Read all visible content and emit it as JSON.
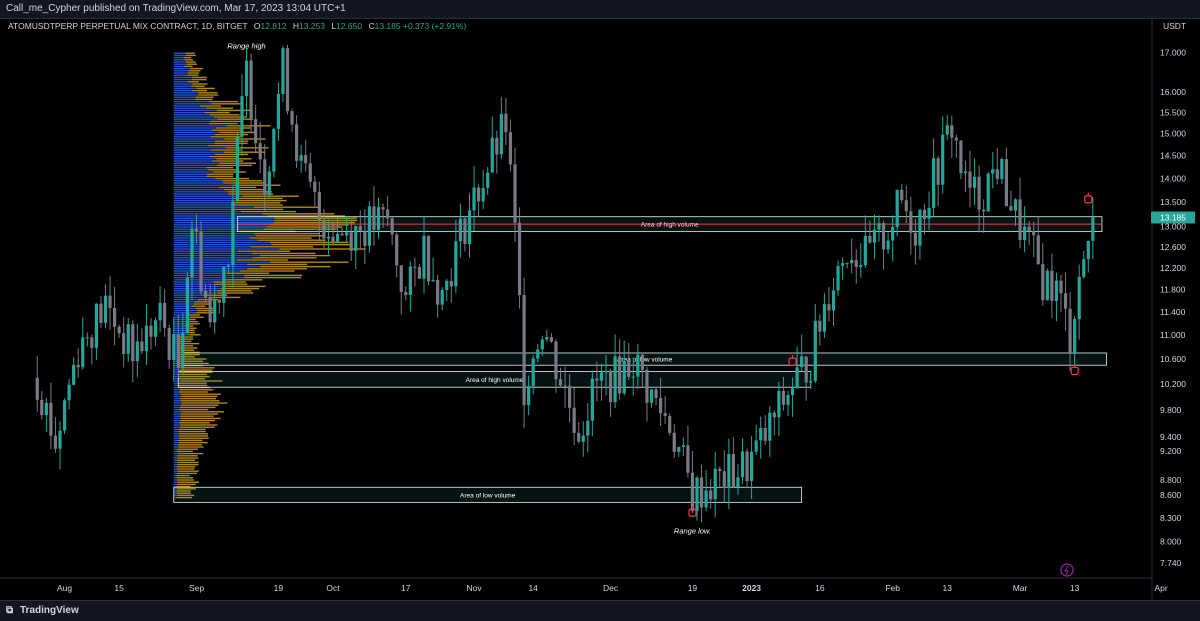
{
  "header": {
    "published": "Call_me_Cypher published on TradingView.com, Mar 17, 2023 13:04 UTC+1",
    "symbol": "ATOMUSDTPERP PERPETUAL MIX CONTRACT, 1D, BITGET",
    "ohlc": {
      "o_label": "O",
      "o": "12.812",
      "h_label": "H",
      "h": "13.253",
      "l_label": "L",
      "l": "12.650",
      "c_label": "C",
      "c": "13.185",
      "change": "+0.373 (+2.91%)"
    },
    "currency": "USDT"
  },
  "footer": {
    "brand": "TradingView"
  },
  "chart_data": {
    "type": "candlestick",
    "y_scale": "log",
    "ylim": [
      7.6,
      17.6
    ],
    "y_ticks": [
      "17.000",
      "16.000",
      "15.500",
      "15.000",
      "14.500",
      "14.000",
      "13.500",
      "13.000",
      "12.600",
      "12.200",
      "11.800",
      "11.400",
      "11.000",
      "10.600",
      "10.200",
      "9.800",
      "9.400",
      "9.200",
      "8.800",
      "8.600",
      "8.300",
      "8.000",
      "7.740"
    ],
    "x_ticks": [
      "Aug",
      "15",
      "Sep",
      "19",
      "Oct",
      "17",
      "Nov",
      "14",
      "Dec",
      "19",
      "2023",
      "16",
      "Feb",
      "13",
      "Mar",
      "13",
      "Apr"
    ],
    "last_price": "13.185",
    "price_line": 13.05,
    "anchors": [
      {
        "date": "Jul 28",
        "price": 10.3
      },
      {
        "date": "Aug 01",
        "price": 9.3
      },
      {
        "date": "Aug 06",
        "price": 10.8
      },
      {
        "date": "Aug 12",
        "price": 11.5
      },
      {
        "date": "Aug 18",
        "price": 10.7
      },
      {
        "date": "Aug 24",
        "price": 11.3
      },
      {
        "date": "Aug 28",
        "price": 10.5
      },
      {
        "date": "Aug 31",
        "price": 13.1
      },
      {
        "date": "Sep 04",
        "price": 11.2
      },
      {
        "date": "Sep 08",
        "price": 12.6
      },
      {
        "date": "Sep 12",
        "price": 16.5
      },
      {
        "date": "Sep 16",
        "price": 14.0
      },
      {
        "date": "Sep 20",
        "price": 16.6
      },
      {
        "date": "Sep 24",
        "price": 14.2
      },
      {
        "date": "Sep 28",
        "price": 13.2
      },
      {
        "date": "Oct 02",
        "price": 12.9
      },
      {
        "date": "Oct 08",
        "price": 13.0
      },
      {
        "date": "Oct 13",
        "price": 13.1
      },
      {
        "date": "Oct 17",
        "price": 11.6
      },
      {
        "date": "Oct 21",
        "price": 12.6
      },
      {
        "date": "Oct 25",
        "price": 11.7
      },
      {
        "date": "Oct 30",
        "price": 13.1
      },
      {
        "date": "Nov 03",
        "price": 14.0
      },
      {
        "date": "Nov 08",
        "price": 15.2
      },
      {
        "date": "Nov 10",
        "price": 12.8
      },
      {
        "date": "Nov 12",
        "price": 10.2
      },
      {
        "date": "Nov 16",
        "price": 11.2
      },
      {
        "date": "Nov 20",
        "price": 10.3
      },
      {
        "date": "Nov 24",
        "price": 9.5
      },
      {
        "date": "Nov 28",
        "price": 10.2
      },
      {
        "date": "Dec 02",
        "price": 10.3
      },
      {
        "date": "Dec 06",
        "price": 10.6
      },
      {
        "date": "Dec 10",
        "price": 10.0
      },
      {
        "date": "Dec 14",
        "price": 9.6
      },
      {
        "date": "Dec 19",
        "price": 8.6
      },
      {
        "date": "Dec 25",
        "price": 8.8
      },
      {
        "date": "Dec 31",
        "price": 9.0
      },
      {
        "date": "Jan 04",
        "price": 9.4
      },
      {
        "date": "Jan 07",
        "price": 9.8
      },
      {
        "date": "Jan 10",
        "price": 10.2
      },
      {
        "date": "Jan 14",
        "price": 10.6
      },
      {
        "date": "Jan 18",
        "price": 11.8
      },
      {
        "date": "Jan 22",
        "price": 12.6
      },
      {
        "date": "Jan 26",
        "price": 12.4
      },
      {
        "date": "Jan 30",
        "price": 12.8
      },
      {
        "date": "Feb 03",
        "price": 13.5
      },
      {
        "date": "Feb 06",
        "price": 13.0
      },
      {
        "date": "Feb 10",
        "price": 14.0
      },
      {
        "date": "Feb 14",
        "price": 15.2
      },
      {
        "date": "Feb 17",
        "price": 13.8
      },
      {
        "date": "Feb 20",
        "price": 13.6
      },
      {
        "date": "Feb 24",
        "price": 14.3
      },
      {
        "date": "Feb 28",
        "price": 13.2
      },
      {
        "date": "Mar 03",
        "price": 12.6
      },
      {
        "date": "Mar 06",
        "price": 12.0
      },
      {
        "date": "Mar 09",
        "price": 11.8
      },
      {
        "date": "Mar 12",
        "price": 11.0
      },
      {
        "date": "Mar 14",
        "price": 12.0
      },
      {
        "date": "Mar 17",
        "price": 13.185
      }
    ],
    "zones": [
      {
        "label": "Area of high volume",
        "from": "Sep 10",
        "to": "Mar 19",
        "top": 13.2,
        "bottom": 12.9
      },
      {
        "label": "Area of low volume",
        "from": "Aug 29",
        "to": "Mar 20",
        "top": 10.7,
        "bottom": 10.5
      },
      {
        "label": "Area of high volume",
        "from": "Aug 28",
        "to": "Jan 14",
        "top": 10.4,
        "bottom": 10.15
      },
      {
        "label": "Area of low volume",
        "from": "Aug 27",
        "to": "Jan 12",
        "top": 8.7,
        "bottom": 8.5
      }
    ],
    "annotations": [
      {
        "text": "Range high",
        "date": "Sep 12",
        "price": 17.1
      },
      {
        "text": "Range low.",
        "date": "Dec 19",
        "price": 8.1
      }
    ],
    "colors": {
      "up": "#26a69a",
      "down": "#787b86",
      "vp_up": "#2962ff",
      "vp_down": "#d4a017",
      "price_line": "#f23645",
      "marker": "#f23645",
      "zone": "#e0f2f1"
    }
  }
}
